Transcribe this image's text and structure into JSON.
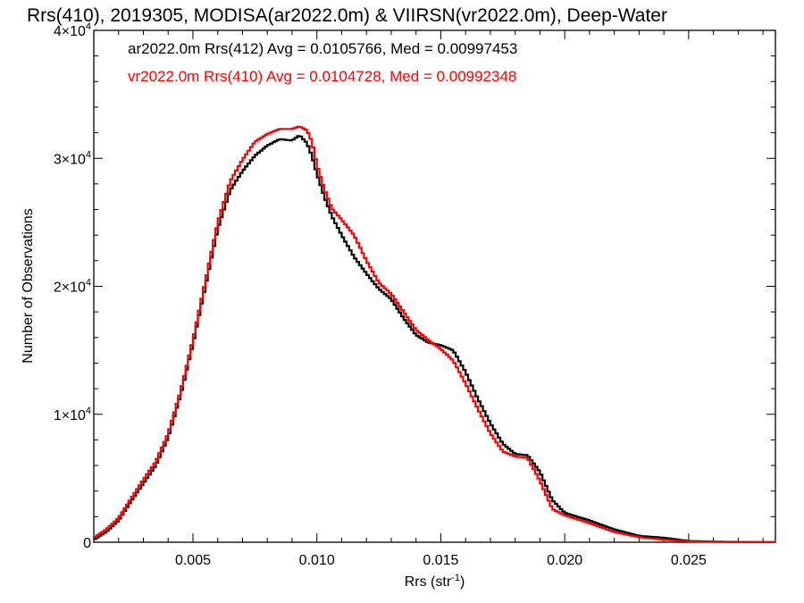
{
  "chart_data": {
    "type": "line",
    "title": "Rrs(410), 2019305, MODISA(ar2022.0m) & VIIRSN(vr2022.0m), Deep-Water",
    "xlabel": "Rrs (str",
    "xlabel_sup": "-1",
    "xlabel_end": ")",
    "ylabel": "Number of Observations",
    "xlim": [
      0.001,
      0.0285
    ],
    "ylim": [
      0,
      40000
    ],
    "x_ticks": [
      {
        "value": 0.005,
        "label": "0.005"
      },
      {
        "value": 0.01,
        "label": "0.010"
      },
      {
        "value": 0.015,
        "label": "0.015"
      },
      {
        "value": 0.02,
        "label": "0.020"
      },
      {
        "value": 0.025,
        "label": "0.025"
      }
    ],
    "y_ticks": [
      {
        "value": 0,
        "base": "0",
        "exp": ""
      },
      {
        "value": 10000,
        "base": "1×10",
        "exp": "4"
      },
      {
        "value": 20000,
        "base": "2×10",
        "exp": "4"
      },
      {
        "value": 30000,
        "base": "3×10",
        "exp": "4"
      },
      {
        "value": 40000,
        "base": "4×10",
        "exp": "4"
      }
    ],
    "grid": false,
    "legend_position": "top-left",
    "series": [
      {
        "name": "ar2022.0m Rrs(412) Avg = 0.0105766, Med = 0.00997453",
        "color": "#000000",
        "x": [
          0.001,
          0.0015,
          0.002,
          0.0025,
          0.003,
          0.0035,
          0.004,
          0.0045,
          0.005,
          0.0055,
          0.006,
          0.0065,
          0.007,
          0.0075,
          0.008,
          0.0085,
          0.009,
          0.0093,
          0.0096,
          0.0098,
          0.01,
          0.0103,
          0.0106,
          0.011,
          0.0115,
          0.012,
          0.0125,
          0.013,
          0.0135,
          0.014,
          0.0145,
          0.015,
          0.0155,
          0.016,
          0.0165,
          0.017,
          0.0175,
          0.018,
          0.0185,
          0.019,
          0.0195,
          0.02,
          0.021,
          0.022,
          0.023,
          0.024,
          0.025,
          0.026,
          0.027,
          0.028
        ],
        "y": [
          200,
          800,
          1700,
          3200,
          4600,
          6000,
          8200,
          11500,
          15500,
          20000,
          24500,
          27500,
          29000,
          30200,
          31000,
          31500,
          31400,
          31800,
          31200,
          30200,
          28800,
          27000,
          25500,
          24000,
          22300,
          21000,
          19800,
          19000,
          17500,
          16200,
          15600,
          15400,
          15000,
          13300,
          11200,
          9300,
          7700,
          6900,
          6800,
          5500,
          3300,
          2300,
          1700,
          1000,
          500,
          350,
          100,
          50,
          20,
          10
        ]
      },
      {
        "name": "vr2022.0m Rrs(410) Avg = 0.0104728, Med = 0.00992348",
        "color": "#ff0000",
        "x": [
          0.001,
          0.0015,
          0.002,
          0.0025,
          0.003,
          0.0035,
          0.004,
          0.0045,
          0.005,
          0.0055,
          0.006,
          0.0065,
          0.007,
          0.0075,
          0.008,
          0.0085,
          0.009,
          0.0093,
          0.0096,
          0.0098,
          0.01,
          0.0103,
          0.0106,
          0.011,
          0.0115,
          0.012,
          0.0125,
          0.013,
          0.0135,
          0.014,
          0.0145,
          0.015,
          0.0155,
          0.016,
          0.0165,
          0.017,
          0.0175,
          0.018,
          0.0185,
          0.019,
          0.0195,
          0.02,
          0.021,
          0.022,
          0.023,
          0.024,
          0.025,
          0.026,
          0.027,
          0.028
        ],
        "y": [
          350,
          1000,
          1900,
          3400,
          4900,
          6300,
          8500,
          11800,
          15800,
          20400,
          25000,
          28200,
          29900,
          31300,
          31900,
          32300,
          32300,
          32500,
          32200,
          31300,
          29500,
          27600,
          26100,
          25200,
          24000,
          22000,
          20300,
          19400,
          18000,
          16600,
          15800,
          15100,
          14200,
          12400,
          10400,
          8500,
          7100,
          6700,
          6600,
          4800,
          2600,
          2100,
          1500,
          800,
          400,
          200,
          70,
          30,
          10,
          5
        ]
      }
    ]
  }
}
